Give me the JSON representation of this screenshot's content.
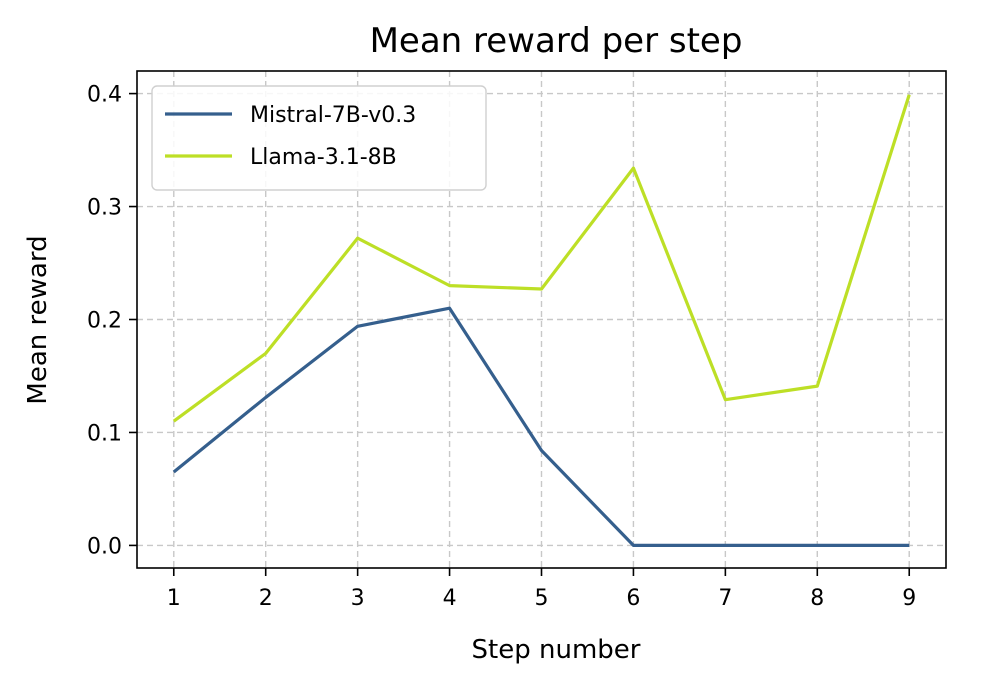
{
  "chart_data": {
    "type": "line",
    "title": "Mean reward per step",
    "xlabel": "Step number",
    "ylabel": "Mean reward",
    "x": [
      1,
      2,
      3,
      4,
      5,
      6,
      7,
      8,
      9
    ],
    "xticks": [
      "1",
      "2",
      "3",
      "4",
      "5",
      "6",
      "7",
      "8",
      "9"
    ],
    "yticks": [
      0.0,
      0.1,
      0.2,
      0.3,
      0.4
    ],
    "ytick_labels": [
      "0.0",
      "0.1",
      "0.2",
      "0.3",
      "0.4"
    ],
    "xlim": [
      0.6,
      9.4
    ],
    "ylim": [
      -0.02,
      0.42
    ],
    "grid": true,
    "legend_position": "top-left",
    "series": [
      {
        "name": "Mistral-7B-v0.3",
        "color": "#355f8d",
        "values": [
          0.065,
          0.131,
          0.194,
          0.21,
          0.084,
          0.0,
          0.0,
          0.0,
          0.0
        ]
      },
      {
        "name": "Llama-3.1-8B",
        "color": "#bddf26",
        "values": [
          0.11,
          0.17,
          0.272,
          0.23,
          0.227,
          0.334,
          0.129,
          0.141,
          0.399
        ]
      }
    ]
  }
}
